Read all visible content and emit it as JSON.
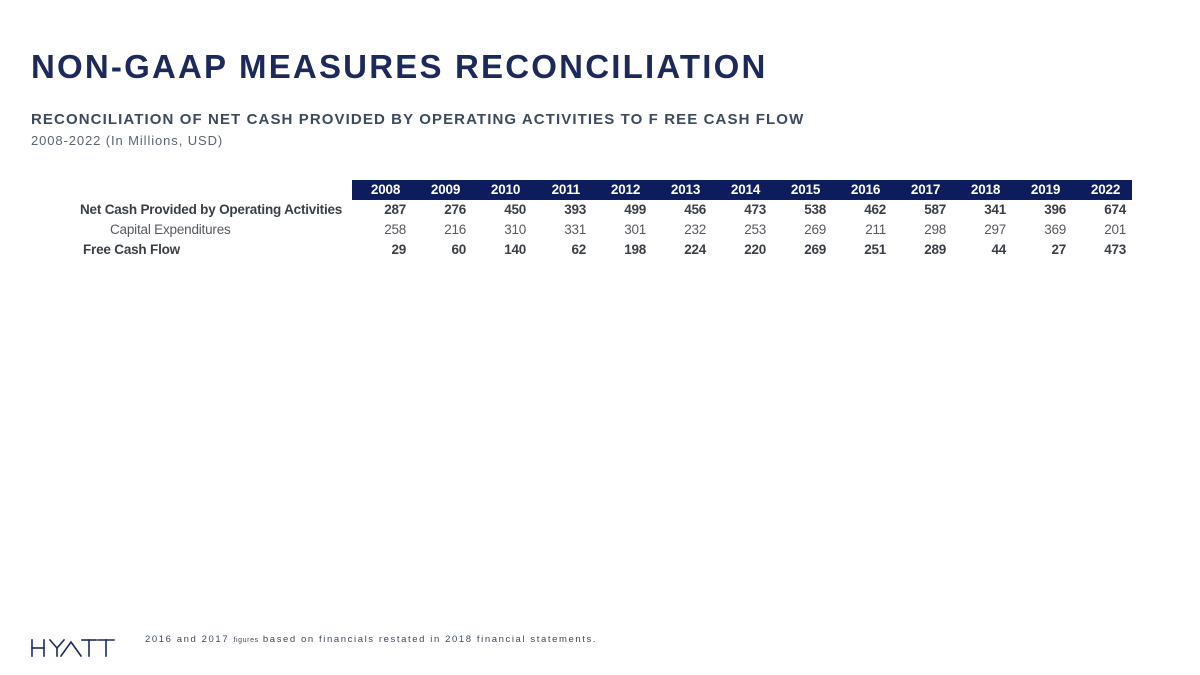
{
  "header": {
    "title": "NON-GAAP MEASURES RECONCILIATION",
    "subtitle": "RECONCILIATION  OF NET CASH  PROVIDED  BY OPERATING ACTIVITIES  TO F REE  CASH  FLOW",
    "range": "2008-2022 (In Millions, USD)"
  },
  "table": {
    "years": [
      "2008",
      "2009",
      "2010",
      "2011",
      "2012",
      "2013",
      "2014",
      "2015",
      "2016",
      "2017",
      "2018",
      "2019",
      "2022"
    ],
    "rows": [
      {
        "label": "Net Cash Provided by Operating Activities",
        "values": [
          "287",
          "276",
          "450",
          "393",
          "499",
          "456",
          "473",
          "538",
          "462",
          "587",
          "341",
          "396",
          "674"
        ]
      },
      {
        "label": "Capital Expenditures",
        "values": [
          "258",
          "216",
          "310",
          "331",
          "301",
          "232",
          "253",
          "269",
          "211",
          "298",
          "297",
          "369",
          "201"
        ]
      },
      {
        "label": "Free Cash Flow",
        "values": [
          "29",
          "60",
          "140",
          "62",
          "198",
          "224",
          "220",
          "269",
          "251",
          "289",
          "44",
          "27",
          "473"
        ]
      }
    ]
  },
  "footer": {
    "brand": "HYATT",
    "note_start": "2016 and 2017",
    "note_small": "figures",
    "note_end": "based on financials restated in 2018 financial statements.",
    "brand_color": "#1b2a5a"
  }
}
